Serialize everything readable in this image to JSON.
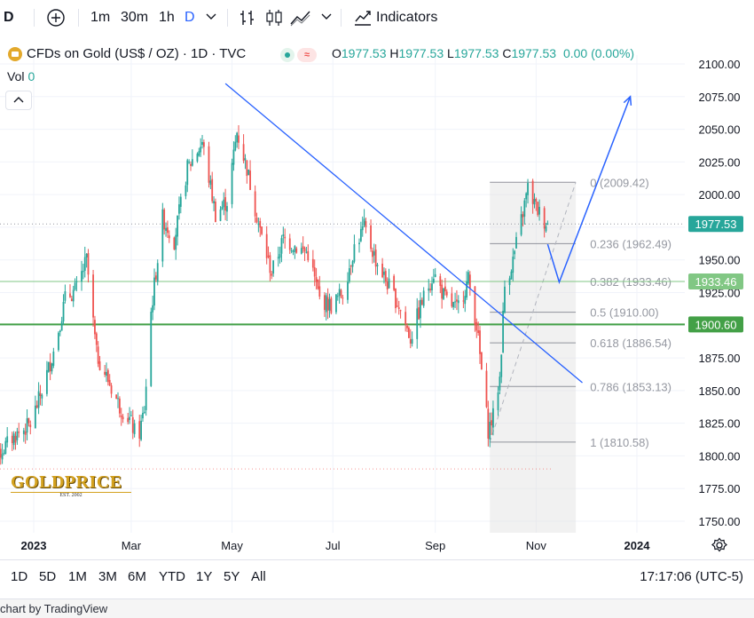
{
  "toolbar": {
    "symbol_short": "D",
    "add_icon": "plus-circle-icon",
    "intervals": [
      "1m",
      "30m",
      "1h",
      "D"
    ],
    "active_interval": "D",
    "indicators_label": "Indicators"
  },
  "legend": {
    "title": "CFDs on Gold (US$ / OZ) · 1D · TVC",
    "open_label": "O",
    "open": "1977.53",
    "high_label": "H",
    "high": "1977.53",
    "low_label": "L",
    "low": "1977.53",
    "close_label": "C",
    "close": "1977.53",
    "change": "0.00 (0.00%)",
    "vol_label": "Vol",
    "vol_value": "0",
    "wave_badge": "≈"
  },
  "bottombar": {
    "ranges": [
      "1D",
      "5D",
      "1M",
      "3M",
      "6M",
      "YTD",
      "1Y",
      "5Y",
      "All"
    ],
    "time": "17:17:06 (UTC-5)"
  },
  "credit": "chart by TradingView",
  "watermark": "GOLDPRICE",
  "watermark_sub": "EST. 2002",
  "colors": {
    "up": "#26a69a",
    "down": "#ef5350",
    "trendline": "#2962ff",
    "fib_line": "#787b86",
    "hline_1933": "#81c784",
    "hline_1900": "#43a047",
    "last_price_bg": "#26a69a"
  },
  "chart_data": {
    "type": "candlestick",
    "symbol": "CFDs on Gold (US$ / OZ)",
    "y_axis": {
      "ticks": [
        "2100.00",
        "2075.00",
        "2050.00",
        "2025.00",
        "2000.00",
        "1975.00",
        "1950.00",
        "1925.00",
        "1900.00",
        "1875.00",
        "1850.00",
        "1825.00",
        "1800.00",
        "1775.00",
        "1750.00"
      ],
      "range": [
        1743,
        2105
      ]
    },
    "x_axis": {
      "ticks": [
        "2023",
        "Mar",
        "May",
        "Jul",
        "Sep",
        "Nov",
        "2024"
      ],
      "tick_dates": [
        "2023-01-01",
        "2023-03-01",
        "2023-05-01",
        "2023-07-01",
        "2023-09-01",
        "2023-11-01",
        "2024-01-01"
      ],
      "range": [
        "2022-12-01",
        "2024-01-18"
      ]
    },
    "last_price": "1977.53",
    "price_labels": [
      {
        "value": 1933.46,
        "text": "1933.46"
      },
      {
        "value": 1900.6,
        "text": "1900.60"
      }
    ],
    "horizontal_lines": [
      {
        "value": 1933.46,
        "style": "thin"
      },
      {
        "value": 1900.6,
        "style": "thick"
      },
      {
        "value": 1977.53,
        "style": "dotted-last"
      },
      {
        "value": 1790,
        "style": "dotted-red",
        "to": "2023-11-11"
      }
    ],
    "fibonacci": {
      "from_date": "2023-10-04",
      "to_date": "2023-11-25",
      "levels": [
        {
          "label": "0 (2009.42)",
          "value": 2009.42
        },
        {
          "label": "0.236 (1962.49)",
          "value": 1962.49
        },
        {
          "label": "0.382 (1933.46)",
          "value": 1933.46
        },
        {
          "label": "0.5 (1910.00)",
          "value": 1910.0
        },
        {
          "label": "0.618 (1886.54)",
          "value": 1886.54
        },
        {
          "label": "0.786 (1853.13)",
          "value": 1853.13
        },
        {
          "label": "1 (1810.58)",
          "value": 1810.58
        }
      ]
    },
    "trendline": {
      "from": {
        "date": "2023-04-27",
        "value": 2085
      },
      "to": {
        "date": "2023-11-29",
        "value": 1856
      }
    },
    "projection_arrow": [
      {
        "date": "2023-11-08",
        "value": 1962
      },
      {
        "date": "2023-11-15",
        "value": 1933
      },
      {
        "date": "2023-12-28",
        "value": 2075
      }
    ],
    "close_path": [
      [
        "2022-12-01",
        1792
      ],
      [
        "2022-12-10",
        1800
      ],
      [
        "2022-12-20",
        1815
      ],
      [
        "2022-12-30",
        1824
      ],
      [
        "2023-01-06",
        1850
      ],
      [
        "2023-01-13",
        1880
      ],
      [
        "2023-01-20",
        1920
      ],
      [
        "2023-01-27",
        1928
      ],
      [
        "2023-02-02",
        1950
      ],
      [
        "2023-02-08",
        1878
      ],
      [
        "2023-02-15",
        1858
      ],
      [
        "2023-02-22",
        1838
      ],
      [
        "2023-02-28",
        1828
      ],
      [
        "2023-03-05",
        1812
      ],
      [
        "2023-03-09",
        1836
      ],
      [
        "2023-03-13",
        1910
      ],
      [
        "2023-03-20",
        1982
      ],
      [
        "2023-03-27",
        1965
      ],
      [
        "2023-04-04",
        2020
      ],
      [
        "2023-04-13",
        2040
      ],
      [
        "2023-04-21",
        1985
      ],
      [
        "2023-04-28",
        1995
      ],
      [
        "2023-05-04",
        2048
      ],
      [
        "2023-05-10",
        2020
      ],
      [
        "2023-05-18",
        1972
      ],
      [
        "2023-05-25",
        1940
      ],
      [
        "2023-06-01",
        1966
      ],
      [
        "2023-06-09",
        1960
      ],
      [
        "2023-06-16",
        1955
      ],
      [
        "2023-06-23",
        1920
      ],
      [
        "2023-06-30",
        1915
      ],
      [
        "2023-07-07",
        1925
      ],
      [
        "2023-07-14",
        1960
      ],
      [
        "2023-07-20",
        1975
      ],
      [
        "2023-07-27",
        1950
      ],
      [
        "2023-08-03",
        1932
      ],
      [
        "2023-08-10",
        1915
      ],
      [
        "2023-08-17",
        1890
      ],
      [
        "2023-08-24",
        1918
      ],
      [
        "2023-08-31",
        1940
      ],
      [
        "2023-09-07",
        1920
      ],
      [
        "2023-09-14",
        1912
      ],
      [
        "2023-09-21",
        1935
      ],
      [
        "2023-09-26",
        1900
      ],
      [
        "2023-09-29",
        1865
      ],
      [
        "2023-10-03",
        1820
      ],
      [
        "2023-10-06",
        1830
      ],
      [
        "2023-10-10",
        1860
      ],
      [
        "2023-10-13",
        1930
      ],
      [
        "2023-10-18",
        1950
      ],
      [
        "2023-10-23",
        1980
      ],
      [
        "2023-10-27",
        2005
      ],
      [
        "2023-11-01",
        1990
      ],
      [
        "2023-11-06",
        1980
      ],
      [
        "2023-11-08",
        1977.53
      ]
    ]
  }
}
